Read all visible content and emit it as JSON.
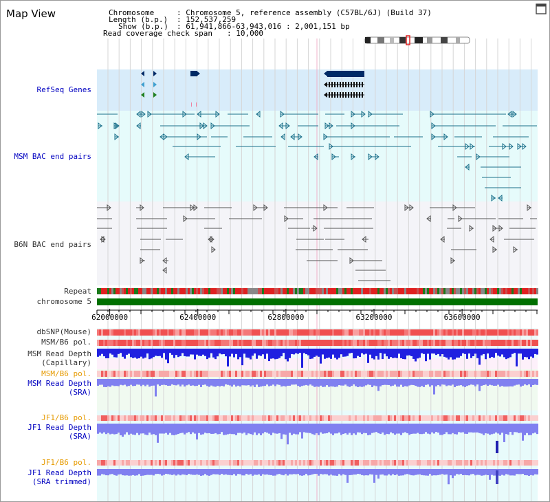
{
  "title": "Map View",
  "header": {
    "chromosome_key": "Chromosome",
    "chromosome_val": ": Chromosome 5, reference assembly (C57BL/6J) (Build 37)",
    "length_key": "Length (b.p.)",
    "length_val": ": 152,537,259",
    "show_key": "Show (b.p.)",
    "show_val": ": 61,941,866-63,943,016 : 2,001,151 bp",
    "coverage_key": "Read coverage check span",
    "coverage_val": ": 10,000"
  },
  "tracks": {
    "refseq": "RefSeq Genes",
    "msm_bac": "MSM BAC end pairs",
    "b6n_bac": "B6N BAC end pairs",
    "repeat": "Repeat",
    "chromosome": "chromosome 5",
    "dbsnp": "dbSNP(Mouse)",
    "msm_b6_pol": "MSM/B6 pol.",
    "msm_depth_cap_1": "MSM Read Depth",
    "msm_depth_cap_2": "(Capillary)",
    "msm_b6_pol_sra": "MSM/B6 pol.",
    "msm_depth_sra_1": "MSM Read Depth",
    "msm_depth_sra_2": "(SRA)",
    "jf1_b6_pol": "JF1/B6 pol.",
    "jf1_depth_1": "JF1 Read Depth",
    "jf1_depth_2": "(SRA)",
    "jf1_b6_pol_t": "JF1/B6 pol.",
    "jf1_depth_t_1": "JF1 Read Depth",
    "jf1_depth_t_2": "(SRA trimmed)"
  },
  "axis": {
    "ticks": [
      {
        "label": "62000000",
        "value": 62000000
      },
      {
        "label": "62400000",
        "value": 62400000
      },
      {
        "label": "62800000",
        "value": 62800000
      },
      {
        "label": "63200000",
        "value": 63200000
      },
      {
        "label": "63600000",
        "value": 63600000
      }
    ],
    "range": [
      61941866,
      63943016
    ]
  },
  "icons": {
    "maximize": "maximize-icon"
  },
  "colors": {
    "refseq_bg": "#d8ecfa",
    "msm_bg": "#e6fbfb",
    "b6n_bg": "#f4f4f8",
    "gene": "#002a66",
    "msm_pair": "#1a6f8a",
    "b6n_pair": "#555555",
    "chromosome": "#007000",
    "pol_red": "#f06060",
    "depth_blue": "#2020e0",
    "depth_light": "#8080f0"
  }
}
